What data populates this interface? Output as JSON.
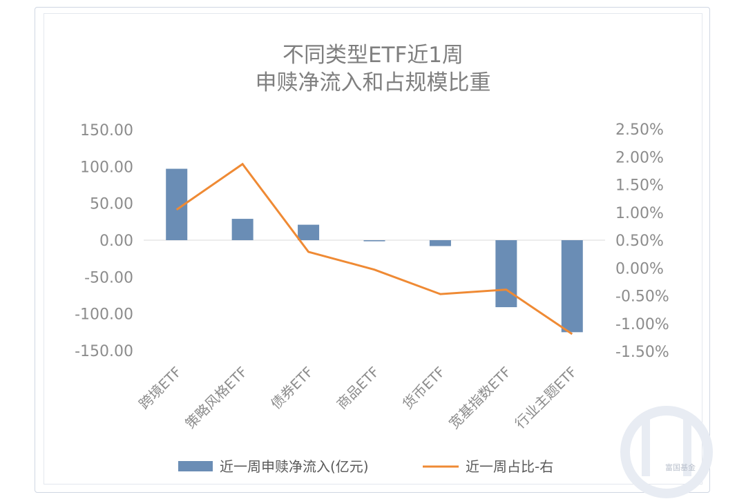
{
  "chart_data": {
    "type": "bar+line",
    "title_line1": "不同类型ETF近1周",
    "title_line2": "申赎净流入和占规模比重",
    "categories": [
      "跨境ETF",
      "策略风格ETF",
      "债券ETF",
      "商品ETF",
      "货币ETF",
      "宽基指数ETF",
      "行业主题ETF"
    ],
    "series": [
      {
        "name": "近一周申赎净流入(亿元)",
        "type": "bar",
        "axis": "left",
        "values": [
          97,
          29,
          21,
          -1.5,
          -8,
          -91,
          -125
        ],
        "color": "#6a8db5"
      },
      {
        "name": "近一周占比-右",
        "type": "line",
        "axis": "right",
        "values": [
          1.05,
          1.87,
          0.29,
          -0.03,
          -0.47,
          -0.39,
          -1.19
        ],
        "color": "#ef8a34"
      }
    ],
    "left_axis": {
      "min": -150,
      "max": 150,
      "step": 50,
      "ticks": [
        "150.00",
        "100.00",
        "50.00",
        "0.00",
        "-50.00",
        "-100.00",
        "-150.00"
      ]
    },
    "right_axis": {
      "min": -1.5,
      "max": 2.5,
      "step": 0.5,
      "ticks": [
        "2.50%",
        "2.00%",
        "1.50%",
        "1.00%",
        "0.50%",
        "0.00%",
        "-0.50%",
        "-1.00%",
        "-1.50%"
      ]
    },
    "legend_position": "bottom",
    "watermark": "富国基金"
  }
}
